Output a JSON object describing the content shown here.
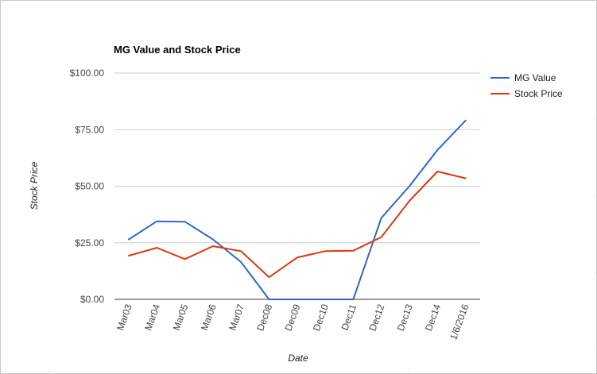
{
  "chart_data": {
    "type": "line",
    "title": "MG Value and Stock Price",
    "xlabel": "Date",
    "ylabel": "Stock Price",
    "categories": [
      "Mar03",
      "Mar04",
      "Mar05",
      "Mar06",
      "Mar07",
      "Dec08",
      "Dec09",
      "Dec10",
      "Dec11",
      "Dec12",
      "Dec13",
      "Dec14",
      "1/6/2016"
    ],
    "series": [
      {
        "name": "MG Value",
        "color": "#3366cc",
        "values": [
          26.5,
          34.5,
          34.3,
          26.5,
          16.5,
          0,
          0,
          0,
          0,
          36,
          50,
          66,
          79
        ]
      },
      {
        "name": "Stock Price",
        "color": "#dc3912",
        "values": [
          19.3,
          22.8,
          17.8,
          23.5,
          21.3,
          9.8,
          18.5,
          21.3,
          21.5,
          27.5,
          43.5,
          56.5,
          53.5
        ]
      }
    ],
    "ylim": [
      0,
      100
    ],
    "yticks": [
      0,
      25,
      50,
      75,
      100
    ],
    "ytick_labels": [
      "$0.00",
      "$25.00",
      "$50.00",
      "$75.00",
      "$100.00"
    ],
    "grid": true,
    "legend_position": "right"
  }
}
